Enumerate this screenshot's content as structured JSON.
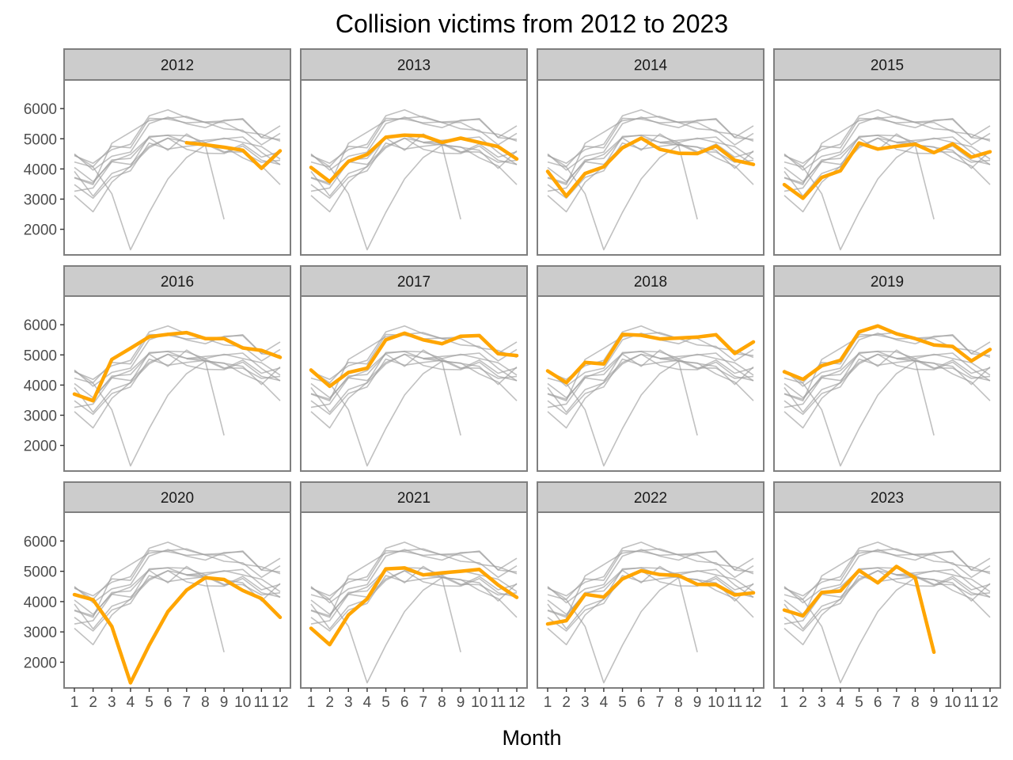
{
  "chart_data": {
    "type": "line",
    "title": "Collision victims from 2012 to 2023",
    "xlabel": "Month",
    "ylabel": "",
    "facet_by": "year",
    "highlight_color": "#FFA500",
    "background_color": "#9e9e9e",
    "x": [
      1,
      2,
      3,
      4,
      5,
      6,
      7,
      8,
      9,
      10,
      11,
      12
    ],
    "x_ticks": [
      "1",
      "2",
      "3",
      "4",
      "5",
      "6",
      "7",
      "8",
      "9",
      "10",
      "11",
      "12"
    ],
    "y_ticks": [
      2000,
      3000,
      4000,
      5000,
      6000
    ],
    "ylim": [
      1150,
      6950
    ],
    "xlim": [
      0.45,
      12.55
    ],
    "series": [
      {
        "name": "2012",
        "values": [
          null,
          null,
          null,
          null,
          null,
          null,
          4870,
          4800,
          4720,
          4620,
          4020,
          4600
        ]
      },
      {
        "name": "2013",
        "values": [
          4050,
          3580,
          4250,
          4480,
          5050,
          5120,
          5100,
          4880,
          5020,
          4880,
          4740,
          4330
        ]
      },
      {
        "name": "2014",
        "values": [
          3920,
          3100,
          3850,
          4070,
          4700,
          5020,
          4650,
          4520,
          4510,
          4760,
          4290,
          4150
        ]
      },
      {
        "name": "2015",
        "values": [
          3480,
          3030,
          3720,
          3940,
          4860,
          4660,
          4750,
          4820,
          4540,
          4830,
          4390,
          4570
        ]
      },
      {
        "name": "2016",
        "values": [
          3700,
          3480,
          4850,
          5220,
          5600,
          5680,
          5740,
          5540,
          5540,
          5230,
          5150,
          4920
        ]
      },
      {
        "name": "2017",
        "values": [
          4500,
          3960,
          4420,
          4560,
          5500,
          5720,
          5500,
          5370,
          5620,
          5640,
          5040,
          4980
        ]
      },
      {
        "name": "2018",
        "values": [
          4470,
          4080,
          4750,
          4700,
          5680,
          5650,
          5530,
          5560,
          5590,
          5670,
          5050,
          5430
        ]
      },
      {
        "name": "2019",
        "values": [
          4440,
          4190,
          4640,
          4820,
          5760,
          5960,
          5700,
          5540,
          5330,
          5280,
          4800,
          5180
        ]
      },
      {
        "name": "2020",
        "values": [
          4230,
          4060,
          3180,
          1320,
          2560,
          3670,
          4380,
          4790,
          4730,
          4370,
          4100,
          3480
        ]
      },
      {
        "name": "2021",
        "values": [
          3120,
          2580,
          3560,
          4090,
          5080,
          5110,
          4880,
          4950,
          5000,
          5060,
          4550,
          4140
        ]
      },
      {
        "name": "2022",
        "values": [
          3260,
          3370,
          4240,
          4150,
          4750,
          5020,
          4890,
          4860,
          4570,
          4560,
          4220,
          4290
        ]
      },
      {
        "name": "2023",
        "values": [
          3720,
          3530,
          4300,
          4350,
          5030,
          4620,
          5160,
          4780,
          2330,
          null,
          null,
          null
        ]
      }
    ]
  }
}
